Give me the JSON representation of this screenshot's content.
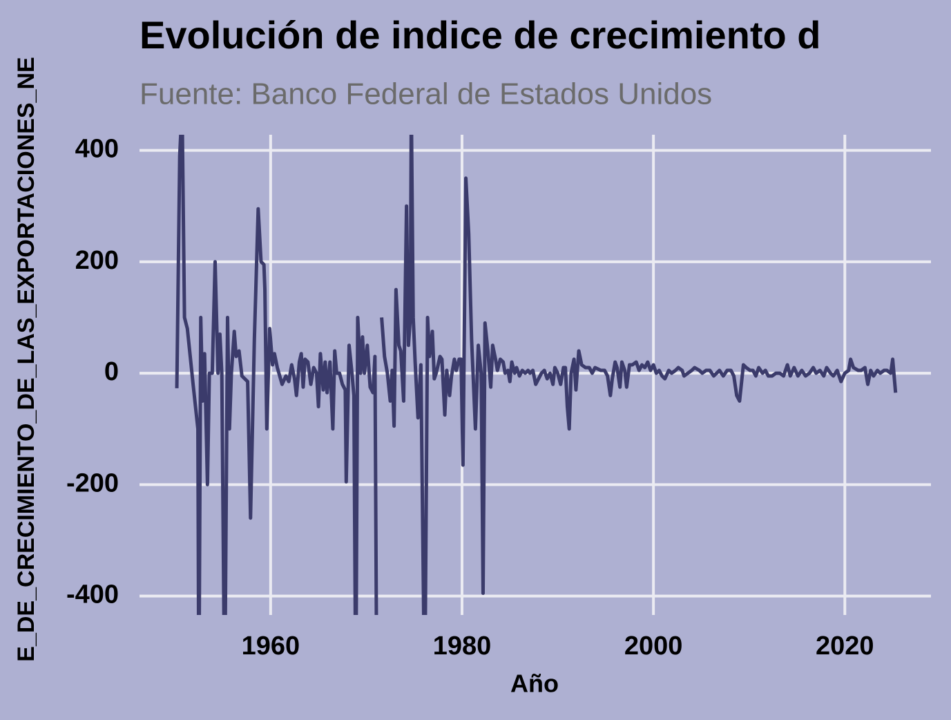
{
  "chart_data": {
    "type": "line",
    "title": "Evolución de indice de crecimiento d",
    "subtitle": "Fuente: Banco Federal de Estados Unidos",
    "x_label": "Año",
    "y_label": "E_DE_CRECIMIENTO_DE_LAS_EXPORTACIONES_NE",
    "color": "#3b3b6b",
    "grid": true,
    "xlim": [
      1946.3,
      2029.0
    ],
    "ylim": [
      -434,
      428
    ],
    "xticks": [
      1960,
      1980,
      2000,
      2020
    ],
    "yticks": [
      -400,
      -200,
      0,
      200,
      400
    ],
    "x": [
      1950.2,
      1950.5,
      1950.75,
      1951.0,
      1951.3,
      1951.9,
      1952.4,
      1952.5,
      1952.7,
      1952.9,
      1953.1,
      1953.4,
      1953.6,
      1953.9,
      1954.2,
      1954.5,
      1954.7,
      1954.9,
      1955.2,
      1955.5,
      1955.7,
      1955.9,
      1956.2,
      1956.4,
      1956.7,
      1957.0,
      1957.3,
      1957.6,
      1957.9,
      1958.3,
      1958.7,
      1959.0,
      1959.3,
      1959.4,
      1959.6,
      1959.9,
      1960.2,
      1960.4,
      1960.7,
      1961.2,
      1961.6,
      1961.9,
      1962.2,
      1962.5,
      1962.7,
      1963.0,
      1963.2,
      1963.4,
      1963.6,
      1963.9,
      1964.2,
      1964.5,
      1964.8,
      1965.0,
      1965.2,
      1965.5,
      1965.7,
      1965.9,
      1966.2,
      1966.5,
      1966.7,
      1966.9,
      1967.2,
      1967.5,
      1967.8,
      1967.9,
      1968.2,
      1968.5,
      1968.7,
      1968.9,
      1969.1,
      1969.4,
      1969.6,
      1969.8,
      1970.1,
      1970.4,
      1970.7,
      1970.9,
      1971.1,
      1971.3,
      1971.6,
      1971.9,
      1972.2,
      1972.5,
      1972.7,
      1972.9,
      1973.1,
      1973.4,
      1973.6,
      1973.9,
      1974.2,
      1974.4,
      1974.6,
      1974.7,
      1974.9,
      1975.1,
      1975.4,
      1975.7,
      1976.1,
      1976.4,
      1976.6,
      1976.9,
      1977.1,
      1977.3,
      1977.7,
      1977.9,
      1978.2,
      1978.4,
      1978.7,
      1978.9,
      1979.2,
      1979.4,
      1979.7,
      1979.9,
      1980.1,
      1980.4,
      1980.7,
      1981.0,
      1981.4,
      1981.7,
      1982.0,
      1982.2,
      1982.4,
      1982.7,
      1983.0,
      1983.2,
      1983.5,
      1983.7,
      1984.0,
      1984.3,
      1984.5,
      1984.8,
      1985.0,
      1985.2,
      1985.5,
      1985.7,
      1986.0,
      1986.3,
      1986.6,
      1986.9,
      1987.1,
      1987.4,
      1987.7,
      1988.0,
      1988.3,
      1988.6,
      1988.9,
      1989.2,
      1989.5,
      1989.7,
      1990.0,
      1990.3,
      1990.6,
      1990.8,
      1991.0,
      1991.2,
      1991.4,
      1991.7,
      1991.9,
      1992.2,
      1992.5,
      1992.9,
      1993.3,
      1993.6,
      1993.9,
      1994.5,
      1994.9,
      1995.2,
      1995.5,
      1995.7,
      1996.0,
      1996.2,
      1996.5,
      1996.7,
      1997.0,
      1997.2,
      1997.5,
      1997.8,
      1998.2,
      1998.5,
      1998.8,
      1999.1,
      1999.4,
      1999.7,
      2000.0,
      2000.3,
      2000.6,
      2000.9,
      2001.2,
      2001.6,
      2001.9,
      2002.3,
      2002.6,
      2003.0,
      2003.2,
      2003.6,
      2004.0,
      2004.3,
      2004.8,
      2005.1,
      2005.5,
      2005.9,
      2006.3,
      2006.6,
      2006.9,
      2007.3,
      2007.7,
      2008.1,
      2008.4,
      2008.7,
      2009.0,
      2009.4,
      2009.7,
      2010.1,
      2010.4,
      2010.7,
      2011.0,
      2011.4,
      2011.7,
      2012.0,
      2012.4,
      2012.8,
      2013.2,
      2013.6,
      2014.0,
      2014.3,
      2014.7,
      2015.1,
      2015.5,
      2015.9,
      2016.3,
      2016.7,
      2017.0,
      2017.4,
      2017.8,
      2018.1,
      2018.5,
      2018.8,
      2019.2,
      2019.6,
      2020.0,
      2020.4,
      2020.6,
      2020.9,
      2021.4,
      2021.7,
      2022.1,
      2022.4,
      2022.7,
      2023.0,
      2023.4,
      2023.7,
      2024.1,
      2024.4,
      2024.8,
      2025.0,
      2025.3
    ],
    "values": [
      -27,
      390,
      480,
      100,
      80,
      -20,
      -100,
      -600,
      100,
      -50,
      35,
      -200,
      0,
      0,
      200,
      0,
      70,
      0,
      -600,
      100,
      -100,
      0,
      75,
      30,
      40,
      -5,
      -10,
      -15,
      -260,
      60,
      295,
      200,
      195,
      150,
      -100,
      80,
      15,
      35,
      10,
      -20,
      -5,
      -15,
      15,
      -10,
      -40,
      20,
      35,
      -25,
      25,
      20,
      -20,
      10,
      0,
      -60,
      35,
      -30,
      20,
      -35,
      20,
      -100,
      40,
      0,
      0,
      -20,
      -30,
      -195,
      50,
      0,
      -40,
      -600,
      100,
      0,
      65,
      0,
      50,
      -25,
      -35,
      30,
      -600,
      null,
      100,
      30,
      0,
      -50,
      5,
      -95,
      150,
      50,
      40,
      -50,
      300,
      50,
      100,
      480,
      100,
      20,
      -80,
      15,
      -600,
      100,
      30,
      75,
      -10,
      0,
      30,
      25,
      -75,
      5,
      -40,
      -5,
      25,
      5,
      25,
      25,
      -165,
      350,
      250,
      60,
      -100,
      50,
      0,
      -395,
      90,
      40,
      -25,
      50,
      25,
      5,
      25,
      20,
      0,
      5,
      -15,
      20,
      0,
      10,
      -5,
      5,
      0,
      5,
      0,
      5,
      -20,
      -10,
      0,
      5,
      -10,
      0,
      -20,
      10,
      0,
      -20,
      10,
      10,
      -60,
      -100,
      0,
      25,
      -30,
      40,
      15,
      10,
      10,
      0,
      10,
      5,
      5,
      -5,
      -40,
      -10,
      20,
      10,
      -25,
      20,
      5,
      -25,
      15,
      15,
      20,
      5,
      15,
      10,
      20,
      5,
      15,
      0,
      5,
      -5,
      -10,
      5,
      0,
      5,
      10,
      5,
      -5,
      0,
      5,
      10,
      5,
      0,
      5,
      5,
      -5,
      0,
      5,
      -5,
      5,
      5,
      -5,
      -40,
      -50,
      15,
      10,
      5,
      5,
      -5,
      10,
      0,
      5,
      -5,
      -5,
      0,
      0,
      -5,
      15,
      -5,
      10,
      -5,
      5,
      -5,
      0,
      10,
      0,
      5,
      -5,
      10,
      0,
      -5,
      5,
      -15,
      0,
      5,
      25,
      10,
      5,
      5,
      10,
      -20,
      5,
      -5,
      5,
      0,
      5,
      5,
      0,
      25,
      -35
    ]
  }
}
